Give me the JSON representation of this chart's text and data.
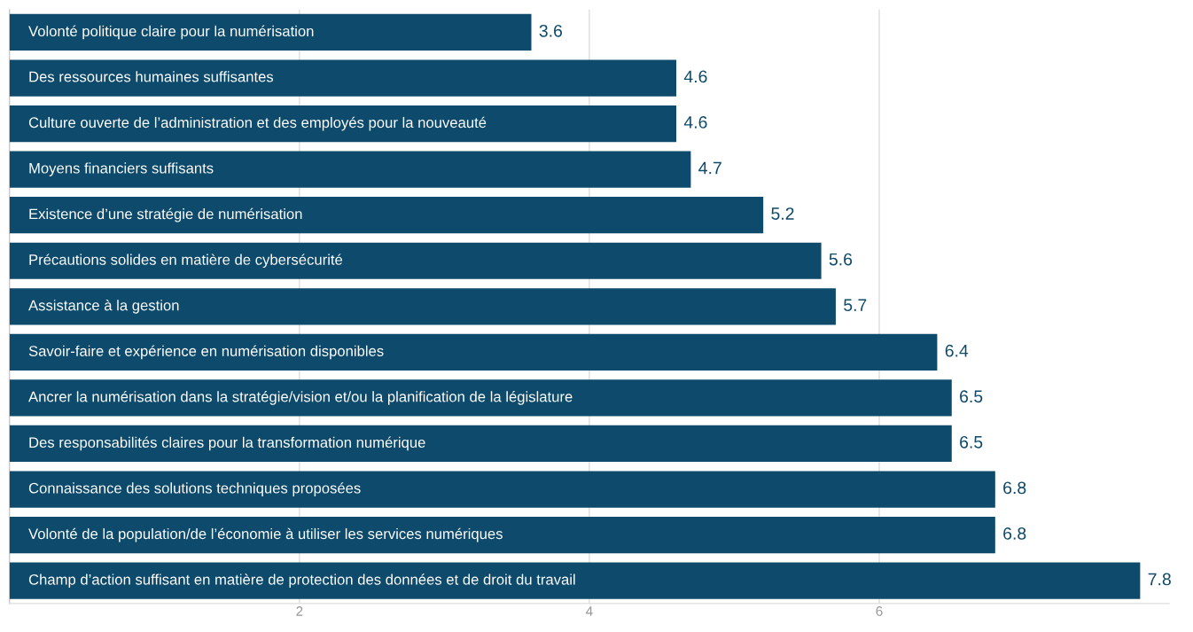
{
  "chart_data": {
    "type": "bar",
    "orientation": "horizontal",
    "categories": [
      "Volonté politique claire pour la numérisation",
      "Des ressources humaines suffisantes",
      "Culture ouverte de l’administration et des employés pour la nouveauté",
      "Moyens financiers suffisants",
      "Existence d’une stratégie de numérisation",
      "Précautions solides en matière de cybersécurité",
      "Assistance à la gestion",
      "Savoir-faire et expérience en numérisation disponibles",
      "Ancrer la numérisation dans la stratégie/vision et/ou la planification de la législature",
      "Des responsabilités claires pour la transformation numérique",
      "Connaissance des solutions techniques proposées",
      "Volonté de la population/de l’économie à utiliser les services numériques",
      "Champ d’action suffisant en matière de protection des données et de droit du travail"
    ],
    "values": [
      3.6,
      4.6,
      4.6,
      4.7,
      5.2,
      5.6,
      5.7,
      6.4,
      6.5,
      6.5,
      6.8,
      6.8,
      7.8
    ],
    "color": "#0d4a6b",
    "xlim": [
      0,
      8
    ],
    "xticks": [
      2,
      4,
      6
    ],
    "grid": "x",
    "data_labels": true
  }
}
